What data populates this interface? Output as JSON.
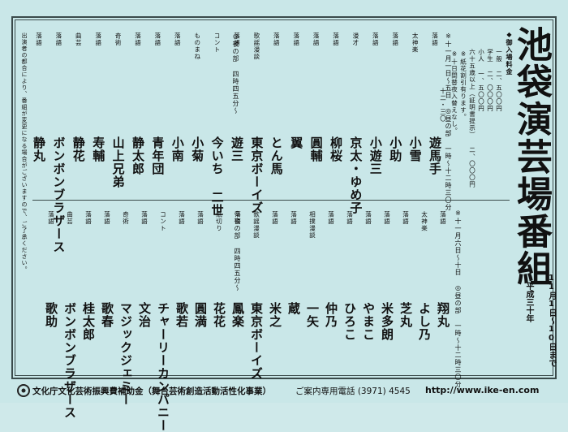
{
  "title": "池袋演芸場番組",
  "period": [
    "平成三十年",
    "11月1日〜10日まで"
  ],
  "prices": {
    "heading": "◆御入場料金",
    "lines": [
      "一般 二、五〇〇円",
      "学生 二、〇〇〇円",
      "小人 一、五〇〇円",
      "六十五歳以上（証明書提示） 二、〇〇〇円",
      "※紙花割引有ります。",
      "※十日間替夜入替えなし。"
    ]
  },
  "notice": "出演者の都合により、番組が変更になる場合がございますので、ご了承ください。",
  "upper": {
    "header": "※十一月一日〜五日 ◎昼の部 一時〜十二時三〇分",
    "night": "◎夜の部 四時四五分〜",
    "acts": [
      {
        "role": "落語",
        "name": "遊馬手",
        "time": "十二・三〇"
      },
      {
        "role": "太神楽",
        "name": "小雪"
      },
      {
        "role": "落語",
        "name": "小助"
      },
      {
        "role": "落語",
        "name": "小遊三"
      },
      {
        "role": "漫才",
        "name": "京太・ゆめ子"
      },
      {
        "role": "落語",
        "name": "柳桜"
      },
      {
        "role": "落語",
        "name": "圓輔"
      },
      {
        "role": "落語",
        "name": "翼"
      },
      {
        "role": "落語",
        "name": "とん馬"
      },
      {
        "role": "歌謡漫談",
        "name": "東京ボーイズ"
      },
      {
        "role": "落語",
        "name": "遊三"
      },
      {
        "role": "コント",
        "name": "今いち 二世"
      },
      {
        "role": "ものまね",
        "name": "小菊"
      },
      {
        "role": "落語",
        "name": "小南"
      },
      {
        "role": "落語",
        "name": "青年団"
      },
      {
        "role": "落語",
        "name": "静太郎"
      },
      {
        "role": "奇術",
        "name": "山上兄弟"
      },
      {
        "role": "落語",
        "name": "寿輔"
      },
      {
        "role": "曲芸",
        "name": "静花"
      },
      {
        "role": "落語",
        "name": "ボンボンブラザース"
      },
      {
        "role": "落語",
        "name": "静丸"
      }
    ]
  },
  "lower": {
    "header": "※十一月六日〜十日 ◎昼の部 一時〜十二時三〇分",
    "night": "◎夜の部 四時四五分〜",
    "acts": [
      {
        "role": "落語",
        "name": "翔丸"
      },
      {
        "role": "太神楽",
        "name": "よし乃"
      },
      {
        "role": "落語",
        "name": "芝丸"
      },
      {
        "role": "落語",
        "name": "米多朗"
      },
      {
        "role": "落語",
        "name": "やまこ"
      },
      {
        "role": "落語",
        "name": "ひろこ"
      },
      {
        "role": "落語",
        "name": "仲乃"
      },
      {
        "role": "相撲漫談",
        "name": "一矢"
      },
      {
        "role": "落語",
        "name": "蔵"
      },
      {
        "role": "落語",
        "name": "米之"
      },
      {
        "role": "歌謡漫談",
        "name": "東京ボーイズ"
      },
      {
        "role": "落語",
        "name": "鳳楽"
      },
      {
        "role": "紙切り",
        "name": "花花"
      },
      {
        "role": "落語",
        "name": "圓満"
      },
      {
        "role": "落語",
        "name": "歌若"
      },
      {
        "role": "コント",
        "name": "チャーリーカンパニー"
      },
      {
        "role": "落語",
        "name": "文治"
      },
      {
        "role": "奇術",
        "name": "マジックジェミー"
      },
      {
        "role": "落語",
        "name": "歌春"
      },
      {
        "role": "落語",
        "name": "桂太郎"
      },
      {
        "role": "曲芸",
        "name": "ボンボンブラザース"
      },
      {
        "role": "落語",
        "name": "歌助"
      }
    ]
  },
  "footer": {
    "fund": "文化庁文化芸術振興費補助金（舞台芸術創造活動活性化事業）",
    "tel": "ご案内専用電話 (3971) 4545",
    "url": "http://www.ike-en.com"
  }
}
